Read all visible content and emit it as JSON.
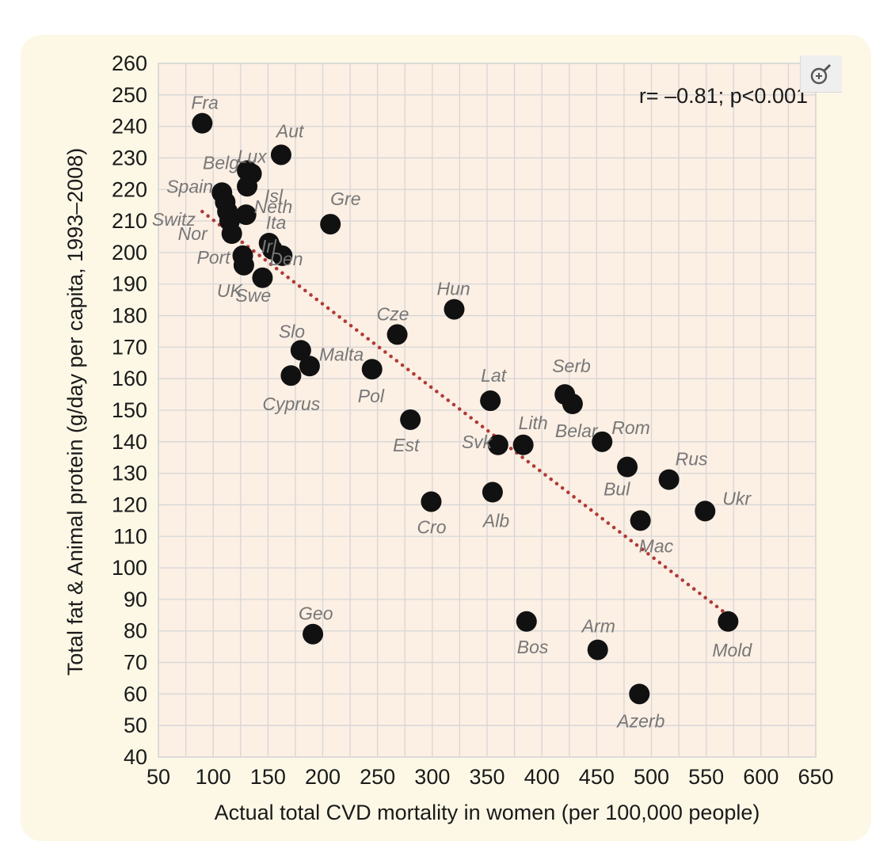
{
  "chart_data": {
    "type": "scatter",
    "xlabel": "Actual total CVD  mortality in women (per 100,000 people)",
    "ylabel": "Total fat & Animal protein (g/day per capita, 1993–2008)",
    "xlim": [
      50,
      650
    ],
    "ylim": [
      40,
      260
    ],
    "x_ticks": [
      50,
      100,
      150,
      200,
      250,
      300,
      350,
      400,
      450,
      500,
      550,
      600,
      650
    ],
    "y_ticks": [
      40,
      50,
      60,
      70,
      80,
      90,
      100,
      110,
      120,
      130,
      140,
      150,
      160,
      170,
      180,
      190,
      200,
      210,
      220,
      230,
      240,
      250,
      260
    ],
    "grid": true,
    "annotation": "r= –0.81; p<0.001",
    "trend_line": {
      "style": "dotted",
      "color": "#b03a36",
      "x": [
        90,
        570
      ],
      "y": [
        213,
        85
      ]
    },
    "point_color": "#111111",
    "label_color": "#777777",
    "points": [
      {
        "label": "Fra",
        "x": 90,
        "y": 241
      },
      {
        "label": "Aut",
        "x": 162,
        "y": 231
      },
      {
        "label": "Lux",
        "x": 135,
        "y": 225
      },
      {
        "label": "Belg",
        "x": 131,
        "y": 226
      },
      {
        "label": "Isl",
        "x": 131,
        "y": 221
      },
      {
        "label": "Spain",
        "x": 108,
        "y": 219
      },
      {
        "label": "",
        "x": 111,
        "y": 216
      },
      {
        "label": "",
        "x": 113,
        "y": 213
      },
      {
        "label": "Neth",
        "x": 130,
        "y": 212
      },
      {
        "label": "Switz",
        "x": 115,
        "y": 210
      },
      {
        "label": "Gre",
        "x": 207,
        "y": 209
      },
      {
        "label": "Nor",
        "x": 117,
        "y": 206
      },
      {
        "label": "Ita",
        "x": 151,
        "y": 203
      },
      {
        "label": "Irl",
        "x": 154,
        "y": 201
      },
      {
        "label": "Den",
        "x": 163,
        "y": 199
      },
      {
        "label": "Port",
        "x": 127,
        "y": 199
      },
      {
        "label": "UK",
        "x": 128,
        "y": 196
      },
      {
        "label": "Swe",
        "x": 145,
        "y": 192
      },
      {
        "label": "Hun",
        "x": 320,
        "y": 182
      },
      {
        "label": "Cze",
        "x": 268,
        "y": 174
      },
      {
        "label": "Slo",
        "x": 180,
        "y": 169
      },
      {
        "label": "Malta",
        "x": 188,
        "y": 164
      },
      {
        "label": "Pol",
        "x": 245,
        "y": 163
      },
      {
        "label": "Cyprus",
        "x": 171,
        "y": 161
      },
      {
        "label": "Serb",
        "x": 421,
        "y": 155
      },
      {
        "label": "Lat",
        "x": 353,
        "y": 153
      },
      {
        "label": "Belar",
        "x": 428,
        "y": 152
      },
      {
        "label": "Est",
        "x": 280,
        "y": 147
      },
      {
        "label": "Rom",
        "x": 455,
        "y": 140
      },
      {
        "label": "Svk",
        "x": 360,
        "y": 139
      },
      {
        "label": "Lith",
        "x": 383,
        "y": 139
      },
      {
        "label": "Bul",
        "x": 478,
        "y": 132
      },
      {
        "label": "Rus",
        "x": 516,
        "y": 128
      },
      {
        "label": "Alb",
        "x": 355,
        "y": 124
      },
      {
        "label": "Cro",
        "x": 299,
        "y": 121
      },
      {
        "label": "Ukr",
        "x": 549,
        "y": 118
      },
      {
        "label": "Mac",
        "x": 490,
        "y": 115
      },
      {
        "label": "Bos",
        "x": 386,
        "y": 83
      },
      {
        "label": "Mold",
        "x": 570,
        "y": 83
      },
      {
        "label": "Geo",
        "x": 191,
        "y": 79
      },
      {
        "label": "Arm",
        "x": 451,
        "y": 74
      },
      {
        "label": "Azerb",
        "x": 489,
        "y": 60
      }
    ]
  }
}
